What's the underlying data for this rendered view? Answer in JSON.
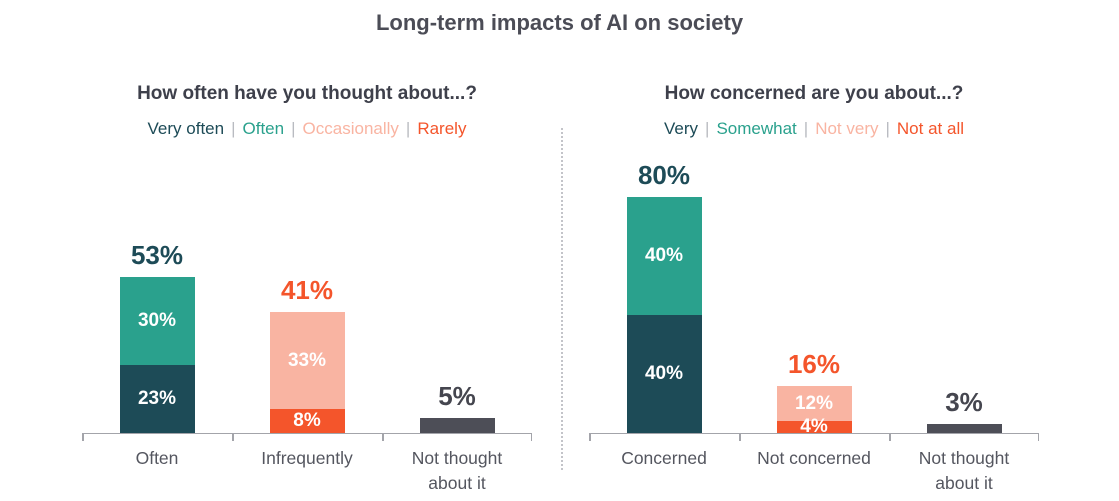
{
  "title": "Long-term impacts of AI on society",
  "legend_separator": "|",
  "colors": {
    "dark_teal": "#1d4b57",
    "teal": "#2aa18d",
    "salmon": "#f9b4a2",
    "orange": "#f4552b",
    "dark_gray": "#4d4e57",
    "dark_text": "#45464f",
    "heading_text": "#3e404b",
    "category_text": "#54565f",
    "axis": "#a3a4aa",
    "divider": "#c3c4c9"
  },
  "chart_data": [
    {
      "type": "bar",
      "stacked": true,
      "panel_title": "How often have you thought about...?",
      "legend": [
        {
          "label": "Very often",
          "color_key": "dark_teal"
        },
        {
          "label": "Often",
          "color_key": "teal"
        },
        {
          "label": "Occasionally",
          "color_key": "salmon"
        },
        {
          "label": "Rarely",
          "color_key": "orange"
        }
      ],
      "categories": [
        "Often",
        "Infrequently",
        "Not thought about it"
      ],
      "ylim": [
        0,
        100
      ],
      "unit": "%",
      "bars": [
        {
          "category": "Often",
          "total_value": 53,
          "total_label": "53%",
          "total_color_key": "dark_teal",
          "segments": [
            {
              "value": 30,
              "label": "30%",
              "color_key": "teal"
            },
            {
              "value": 23,
              "label": "23%",
              "color_key": "dark_teal"
            }
          ]
        },
        {
          "category": "Infrequently",
          "total_value": 41,
          "total_label": "41%",
          "total_color_key": "orange",
          "segments": [
            {
              "value": 33,
              "label": "33%",
              "color_key": "salmon"
            },
            {
              "value": 8,
              "label": "8%",
              "color_key": "orange"
            }
          ]
        },
        {
          "category": "Not thought about it",
          "total_value": 5,
          "total_label": "5%",
          "total_color_key": "dark_text",
          "segments": [
            {
              "value": 5,
              "label": "",
              "color_key": "dark_gray"
            }
          ]
        }
      ]
    },
    {
      "type": "bar",
      "stacked": true,
      "panel_title": "How concerned are you about...?",
      "legend": [
        {
          "label": "Very",
          "color_key": "dark_teal"
        },
        {
          "label": "Somewhat",
          "color_key": "teal"
        },
        {
          "label": "Not very",
          "color_key": "salmon"
        },
        {
          "label": "Not at all",
          "color_key": "orange"
        }
      ],
      "categories": [
        "Concerned",
        "Not concerned",
        "Not thought about it"
      ],
      "ylim": [
        0,
        100
      ],
      "unit": "%",
      "bars": [
        {
          "category": "Concerned",
          "total_value": 80,
          "total_label": "80%",
          "total_color_key": "dark_teal",
          "segments": [
            {
              "value": 40,
              "label": "40%",
              "color_key": "teal"
            },
            {
              "value": 40,
              "label": "40%",
              "color_key": "dark_teal"
            }
          ]
        },
        {
          "category": "Not concerned",
          "total_value": 16,
          "total_label": "16%",
          "total_color_key": "orange",
          "segments": [
            {
              "value": 12,
              "label": "12%",
              "color_key": "salmon"
            },
            {
              "value": 4,
              "label": "4%",
              "color_key": "orange"
            }
          ]
        },
        {
          "category": "Not thought about it",
          "total_value": 3,
          "total_label": "3%",
          "total_color_key": "dark_text",
          "segments": [
            {
              "value": 3,
              "label": "",
              "color_key": "dark_gray"
            }
          ]
        }
      ]
    }
  ]
}
